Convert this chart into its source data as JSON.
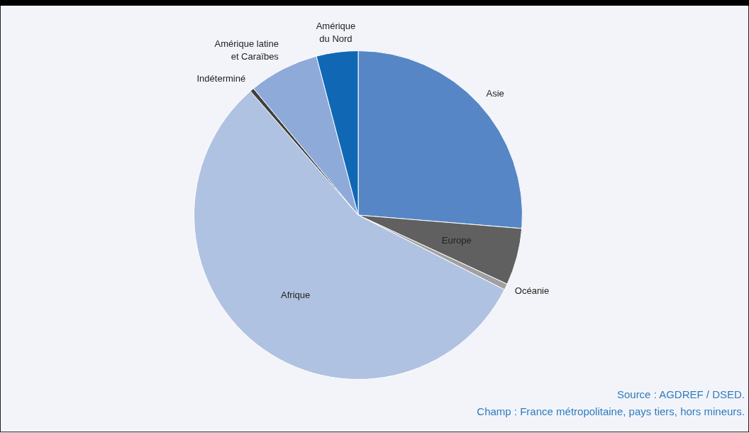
{
  "chart_data": {
    "type": "pie",
    "categories": [
      "Asie",
      "Europe",
      "Océanie",
      "Afrique",
      "Indéterminé",
      "Amérique latine et Caraïbes",
      "Amérique du Nord"
    ],
    "values": [
      26.3,
      5.6,
      0.6,
      56.1,
      0.4,
      6.9,
      4.1
    ],
    "colors": [
      "#5686c5",
      "#606060",
      "#a0a0a0",
      "#b0c2e2",
      "#404040",
      "#8eaad8",
      "#1068b5"
    ],
    "legend": false,
    "annotations": [
      "Source : AGDREF / DSED.",
      "Champ : France métropolitaine, pays tiers, hors mineurs."
    ]
  }
}
